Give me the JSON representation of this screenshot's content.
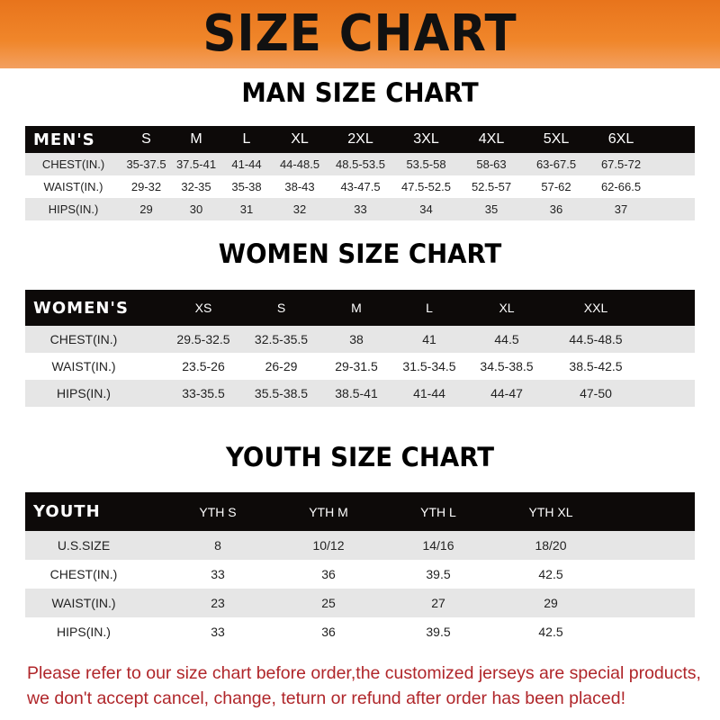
{
  "title": "SIZE CHART",
  "colors": {
    "banner": "#f0862a",
    "header_row": "#0d0a09",
    "stripe": "#e6e6e6",
    "note": "#b0262a"
  },
  "men": {
    "title": "MAN SIZE CHART",
    "header": [
      "MEN'S",
      "S",
      "M",
      "L",
      "XL",
      "2XL",
      "3XL",
      "4XL",
      "5XL",
      "6XL"
    ],
    "rows": [
      [
        "CHEST(IN.)",
        "35-37.5",
        "37.5-41",
        "41-44",
        "44-48.5",
        "48.5-53.5",
        "53.5-58",
        "58-63",
        "63-67.5",
        "67.5-72"
      ],
      [
        "WAIST(IN.)",
        "29-32",
        "32-35",
        "35-38",
        "38-43",
        "43-47.5",
        "47.5-52.5",
        "52.5-57",
        "57-62",
        "62-66.5"
      ],
      [
        "HIPS(IN.)",
        "29",
        "30",
        "31",
        "32",
        "33",
        "34",
        "35",
        "36",
        "37"
      ]
    ]
  },
  "women": {
    "title": "WOMEN SIZE CHART",
    "header": [
      "WOMEN'S",
      "XS",
      "S",
      "M",
      "L",
      "XL",
      "XXL"
    ],
    "rows": [
      [
        "CHEST(IN.)",
        "29.5-32.5",
        "32.5-35.5",
        "38",
        "41",
        "44.5",
        "44.5-48.5"
      ],
      [
        "WAIST(IN.)",
        "23.5-26",
        "26-29",
        "29-31.5",
        "31.5-34.5",
        "34.5-38.5",
        "38.5-42.5"
      ],
      [
        "HIPS(IN.)",
        "33-35.5",
        "35.5-38.5",
        "38.5-41",
        "41-44",
        "44-47",
        "47-50"
      ]
    ]
  },
  "youth": {
    "title": "YOUTH SIZE CHART",
    "header": [
      "YOUTH",
      "YTH S",
      "YTH M",
      "YTH L",
      "YTH XL"
    ],
    "rows": [
      [
        "U.S.SIZE",
        "8",
        "10/12",
        "14/16",
        "18/20"
      ],
      [
        "CHEST(IN.)",
        "33",
        "36",
        "39.5",
        "42.5"
      ],
      [
        "WAIST(IN.)",
        "23",
        "25",
        "27",
        "29"
      ],
      [
        "HIPS(IN.)",
        "33",
        "36",
        "39.5",
        "42.5"
      ]
    ]
  },
  "note": {
    "line1": "Please refer to our size chart before order,the customized jerseys are special products,",
    "line2": "we don't accept cancel, change, teturn or refund after order has been placed!"
  }
}
